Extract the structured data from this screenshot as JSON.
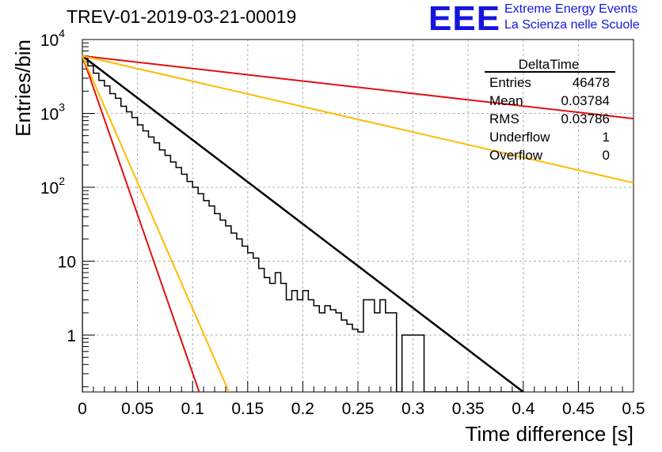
{
  "header": {
    "title": "TREV-01-2019-03-21-00019",
    "logo_text": "EEE",
    "logo_line1": "Extreme Energy Events",
    "logo_line2": "La Scienza nelle Scuole"
  },
  "stats": {
    "title": "DeltaTime",
    "rows": [
      {
        "label": "Entries",
        "value": "46478"
      },
      {
        "label": "Mean",
        "value": "0.03784"
      },
      {
        "label": "RMS",
        "value": "0.03786"
      },
      {
        "label": "Underflow",
        "value": "1"
      },
      {
        "label": "Overflow",
        "value": "0"
      }
    ]
  },
  "chart_data": {
    "type": "line",
    "xlabel": "Time difference [s]",
    "ylabel": "Entries/bin",
    "xlim": [
      0,
      0.5
    ],
    "ylim": [
      0.17,
      10000
    ],
    "yscale": "log",
    "grid": true,
    "x_ticks": [
      "0",
      "0.05",
      "0.1",
      "0.15",
      "0.2",
      "0.25",
      "0.3",
      "0.35",
      "0.4",
      "0.45",
      "0.5"
    ],
    "y_ticks": [
      {
        "value": 1,
        "base": "1",
        "exp": ""
      },
      {
        "value": 10,
        "base": "10",
        "exp": ""
      },
      {
        "value": 100,
        "base": "10",
        "exp": "2"
      },
      {
        "value": 1000,
        "base": "10",
        "exp": "3"
      },
      {
        "value": 10000,
        "base": "10",
        "exp": "4"
      }
    ],
    "colors": {
      "histogram": "#000000",
      "fit": "#000000",
      "red": "#e01010",
      "orange": "#ffbb00",
      "grid": "#b0b0b0"
    },
    "histogram": {
      "bin_width": 0.005,
      "values": [
        5800,
        4400,
        3500,
        2800,
        2350,
        1850,
        1600,
        1250,
        1050,
        880,
        700,
        580,
        480,
        400,
        320,
        270,
        220,
        185,
        150,
        120,
        100,
        82,
        66,
        56,
        44,
        36,
        30,
        24,
        20,
        16,
        13,
        11,
        8,
        6,
        5,
        7,
        5,
        3,
        4,
        3,
        4,
        3,
        2.5,
        2,
        2.5,
        2.2,
        2,
        1.6,
        1.4,
        1.2,
        1.1,
        3,
        3,
        2,
        3,
        2,
        2,
        0,
        1,
        1,
        1,
        1,
        0,
        0,
        0,
        0,
        0,
        0,
        0,
        0,
        0,
        0,
        0,
        0,
        0,
        0,
        0,
        0,
        0,
        0
      ]
    },
    "lines": [
      {
        "color": "fit",
        "x": [
          0,
          0.4
        ],
        "y": [
          6000,
          0.17
        ]
      },
      {
        "color": "red",
        "x": [
          0,
          0.5
        ],
        "y": [
          6000,
          850
        ]
      },
      {
        "color": "orange",
        "x": [
          0,
          0.5
        ],
        "y": [
          6000,
          115
        ]
      },
      {
        "color": "red",
        "x": [
          0,
          0.106
        ],
        "y": [
          6000,
          0.17
        ]
      },
      {
        "color": "orange",
        "x": [
          0,
          0.133
        ],
        "y": [
          6000,
          0.17
        ]
      }
    ]
  }
}
